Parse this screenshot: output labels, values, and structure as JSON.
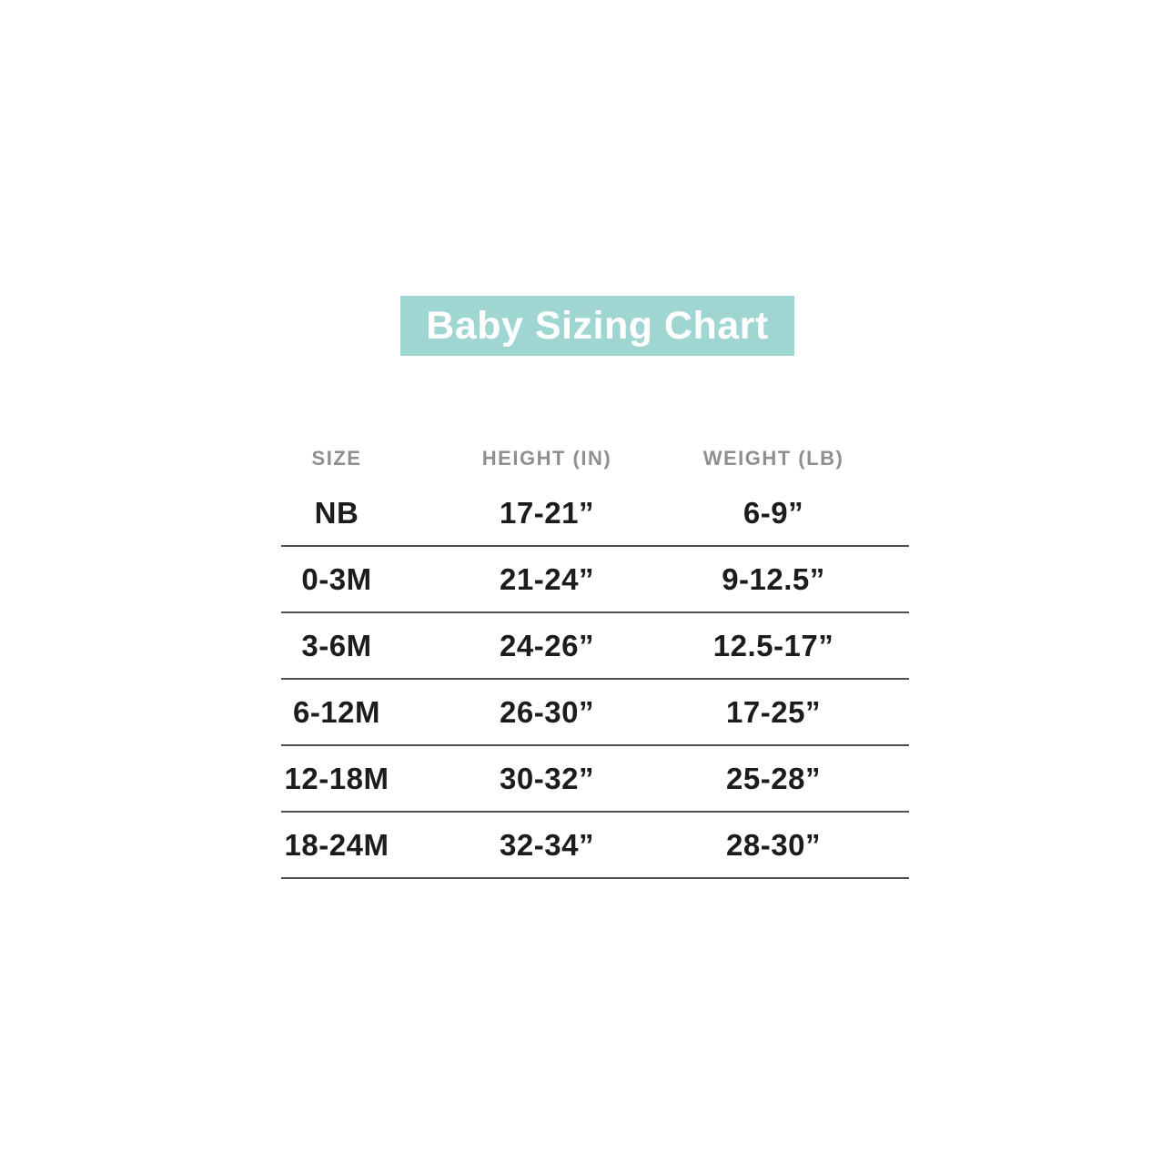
{
  "title_banner": {
    "label": "Baby Sizing Chart"
  },
  "colors": {
    "page_bg": "#FFFFFF",
    "banner_bg": "#9FD6D2",
    "banner_text": "#FFFFFF",
    "header_text": "#8F8F8F",
    "cell_text": "#1C1C1C",
    "divider": "#4F4F4F"
  },
  "chart_data": {
    "type": "table",
    "title": "Baby Sizing Chart",
    "columns": [
      "SIZE",
      "HEIGHT (IN)",
      "WEIGHT (LB)"
    ],
    "rows": [
      {
        "size": "NB",
        "height_in": "17-21”",
        "weight_lb": "6-9”"
      },
      {
        "size": "0-3M",
        "height_in": "21-24”",
        "weight_lb": "9-12.5”"
      },
      {
        "size": "3-6M",
        "height_in": "24-26”",
        "weight_lb": "12.5-17”"
      },
      {
        "size": "6-12M",
        "height_in": "26-30”",
        "weight_lb": "17-25”"
      },
      {
        "size": "12-18M",
        "height_in": "30-32”",
        "weight_lb": "25-28”"
      },
      {
        "size": "18-24M",
        "height_in": "32-34”",
        "weight_lb": "28-30”"
      }
    ],
    "layout_hints": {
      "header_position": "top",
      "row_dividers": true,
      "divider_under_header": false,
      "column_alignment": "center"
    }
  }
}
